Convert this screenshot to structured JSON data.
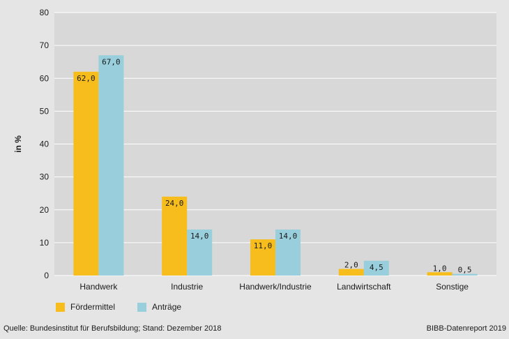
{
  "colors": {
    "plot_bg": "#d8d8d8",
    "grid": "#ffffff",
    "series_1": "#f6bd1c",
    "series_2": "#99cfdc",
    "page_bg": "#e6e5e5"
  },
  "chart_data": {
    "type": "bar",
    "ylabel": "in %",
    "xlabel": "",
    "ylim": [
      0,
      80
    ],
    "yticks": [
      0,
      10,
      20,
      30,
      40,
      50,
      60,
      70,
      80
    ],
    "grid": true,
    "legend_position": "bottom-left",
    "categories": [
      "Handwerk",
      "Industrie",
      "Handwerk/Industrie",
      "Landwirtschaft",
      "Sonstige"
    ],
    "series": [
      {
        "name": "Fördermittel",
        "values": [
          62.0,
          24.0,
          11.0,
          2.0,
          1.0
        ],
        "labels": [
          "62,0",
          "24,0",
          "11,0",
          "2,0",
          "1,0"
        ]
      },
      {
        "name": "Anträge",
        "values": [
          67.0,
          14.0,
          14.0,
          4.5,
          0.5
        ],
        "labels": [
          "67,0",
          "14,0",
          "14,0",
          "4,5",
          "0,5"
        ]
      }
    ]
  },
  "footer": {
    "source": "Quelle: Bundesinstitut für Berufsbildung; Stand: Dezember 2018",
    "credit": "BIBB-Datenreport 2019"
  }
}
